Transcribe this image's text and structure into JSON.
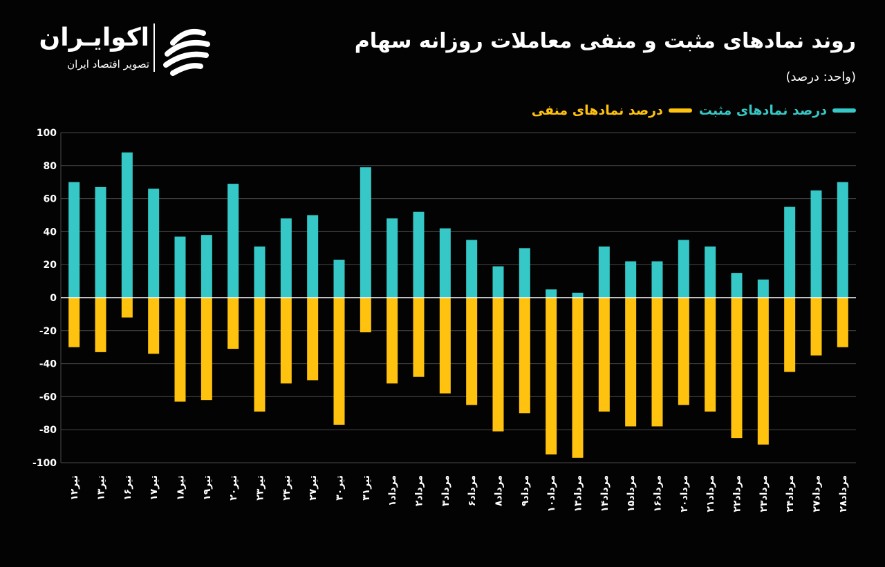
{
  "header": {
    "title": "روند نمادهای مثبت و منفی معاملات روزانه سهام",
    "unit": "(واحد: درصد)"
  },
  "logo": {
    "name": "اکوایـران",
    "tagline": "تصویر اقتصاد ایران"
  },
  "colors": {
    "positive": "#36C8C6",
    "negative": "#FFC20E",
    "background": "#030303",
    "grid": "#4a4a4a"
  },
  "chart_data": {
    "type": "bar",
    "title": "روند نمادهای مثبت و منفی معاملات روزانه سهام",
    "ylim": [
      -100,
      100
    ],
    "yticks": [
      "100",
      "80",
      "60",
      "40",
      "20",
      "0",
      "-20",
      "-40",
      "-60",
      "-80",
      "-100"
    ],
    "grid": true,
    "legend_position": "top-right",
    "categories": [
      "تیر۱۲",
      "تیر۱۳",
      "تیر۱۶",
      "تیر۱۷",
      "تیر۱۸",
      "تیر۱۹",
      "تیر۲۰",
      "تیر۲۳",
      "تیر۲۴",
      "تیر۲۷",
      "تیر۳۰",
      "تیر۳۱",
      "مرداد۱",
      "مرداد۲",
      "مرداد۳",
      "مرداد۶",
      "مرداد۸",
      "مرداد۹",
      "مرداد۱۰",
      "مرداد۱۳",
      "مرداد۱۴",
      "مرداد۱۵",
      "مرداد۱۶",
      "مرداد۲۰",
      "مرداد۲۱",
      "مرداد۲۲",
      "مرداد۲۳",
      "مرداد۲۴",
      "مرداد۲۷",
      "مرداد۲۸"
    ],
    "series": [
      {
        "name": "درصد نمادهای مثبت",
        "color": "#36C8C6",
        "values": [
          70,
          67,
          88,
          66,
          37,
          38,
          69,
          31,
          48,
          50,
          23,
          79,
          48,
          52,
          42,
          35,
          19,
          30,
          5,
          3,
          31,
          22,
          22,
          35,
          31,
          15,
          11,
          55,
          65,
          70
        ]
      },
      {
        "name": "درصد نمادهای منفی",
        "color": "#FFC20E",
        "values": [
          -30,
          -33,
          -12,
          -34,
          -63,
          -62,
          -31,
          -69,
          -52,
          -50,
          -77,
          -21,
          -52,
          -48,
          -58,
          -65,
          -81,
          -70,
          -95,
          -97,
          -69,
          -78,
          -78,
          -65,
          -69,
          -85,
          -89,
          -45,
          -35,
          -30
        ]
      }
    ]
  }
}
